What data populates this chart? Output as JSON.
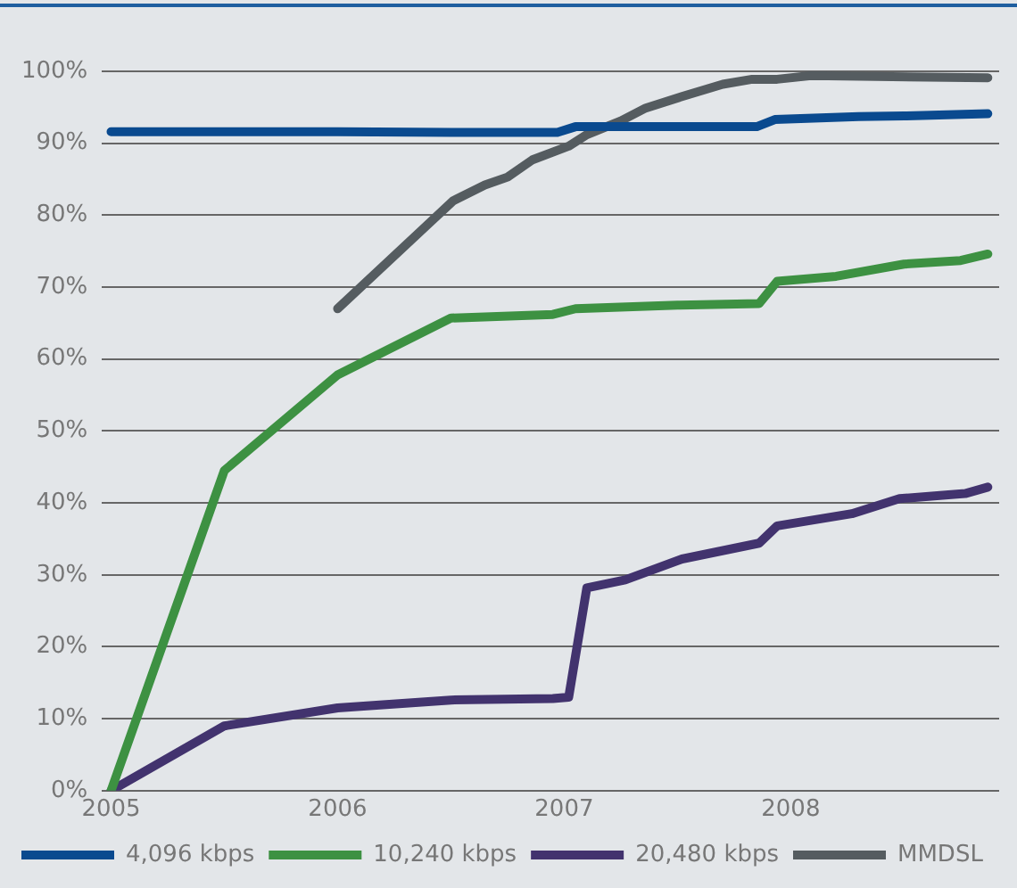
{
  "chart_data": {
    "type": "line",
    "xlim": [
      2004.96,
      2008.92
    ],
    "xticks": [
      2005,
      2006,
      2007,
      2008
    ],
    "ylim": [
      0,
      100
    ],
    "yticks": [
      {
        "value": 0,
        "label": "0%"
      },
      {
        "value": 10,
        "label": "10%"
      },
      {
        "value": 20,
        "label": "20%"
      },
      {
        "value": 30,
        "label": "30%"
      },
      {
        "value": 40,
        "label": "40%"
      },
      {
        "value": 50,
        "label": "50%"
      },
      {
        "value": 60,
        "label": "60%"
      },
      {
        "value": 70,
        "label": "70%"
      },
      {
        "value": 80,
        "label": "80%"
      },
      {
        "value": 90,
        "label": "90%"
      },
      {
        "value": 100,
        "label": "100%"
      }
    ],
    "grid": "y",
    "legend": "bottom",
    "marker": "none",
    "line_style": "solid",
    "series": [
      {
        "name": "4,096 kbps",
        "color": "#0a4a8f",
        "x": [
          2005,
          2006,
          2006.5,
          2006.97,
          2007.05,
          2007.5,
          2007.85,
          2007.93,
          2008.3,
          2008.5,
          2008.87
        ],
        "values": [
          91.6,
          91.6,
          91.5,
          91.5,
          92.3,
          92.3,
          92.3,
          93.3,
          93.7,
          93.8,
          94.1
        ]
      },
      {
        "name": "10,240 kbps",
        "color": "#3d9142",
        "x": [
          2005,
          2005.5,
          2006,
          2006.5,
          2006.95,
          2007.05,
          2007.5,
          2007.86,
          2007.94,
          2008.2,
          2008.5,
          2008.75,
          2008.87
        ],
        "values": [
          0,
          44.5,
          57.8,
          65.7,
          66.2,
          67,
          67.5,
          67.7,
          70.8,
          71.5,
          73.2,
          73.7,
          74.6
        ]
      },
      {
        "name": "20,480 kbps",
        "color": "#42336e",
        "x": [
          2005,
          2005.5,
          2006,
          2006.5,
          2006.95,
          2007.02,
          2007.1,
          2007.27,
          2007.52,
          2007.86,
          2007.94,
          2008.27,
          2008.48,
          2008.77,
          2008.87
        ],
        "values": [
          0,
          9,
          11.5,
          12.6,
          12.8,
          13,
          28.2,
          29.3,
          32.2,
          34.4,
          36.8,
          38.5,
          40.6,
          41.3,
          42.2
        ]
      },
      {
        "name": "MMDSL",
        "color": "#555c60",
        "x": [
          2006,
          2006.51,
          2006.65,
          2006.75,
          2006.86,
          2007.02,
          2007.1,
          2007.25,
          2007.36,
          2007.52,
          2007.7,
          2007.83,
          2007.94,
          2008.09,
          2008.87
        ],
        "values": [
          67,
          82,
          84.2,
          85.3,
          87.7,
          89.6,
          91.2,
          93.1,
          94.9,
          96.5,
          98.2,
          98.9,
          98.9,
          99.4,
          99.1
        ]
      }
    ]
  }
}
